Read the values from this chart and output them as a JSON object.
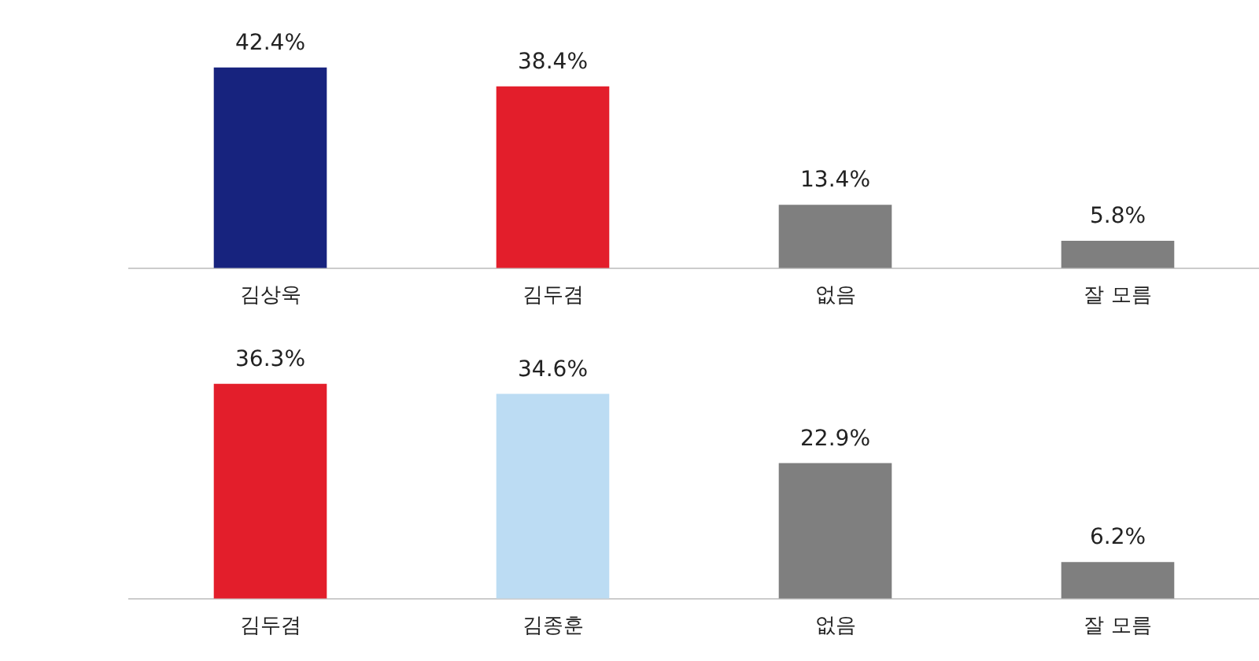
{
  "chart_data": [
    {
      "type": "bar",
      "categories": [
        "김상욱",
        "김두겸",
        "없음",
        "잘 모름"
      ],
      "values": [
        42.4,
        38.4,
        13.4,
        5.8
      ],
      "colors": [
        "#17237e",
        "#e31e2b",
        "#7f7f7f",
        "#7f7f7f"
      ],
      "value_labels": [
        "42.4%",
        "38.4%",
        "13.4%",
        "5.8%"
      ],
      "tick_labels": "x",
      "grid": false,
      "legend": false
    },
    {
      "type": "bar",
      "categories": [
        "김두겸",
        "김종훈",
        "없음",
        "잘 모름"
      ],
      "values": [
        36.3,
        34.6,
        22.9,
        6.2
      ],
      "colors": [
        "#e31e2b",
        "#bcdcf3",
        "#7f7f7f",
        "#7f7f7f"
      ],
      "value_labels": [
        "36.3%",
        "34.6%",
        "22.9%",
        "6.2%"
      ],
      "tick_labels": "x",
      "grid": false,
      "legend": false
    }
  ]
}
